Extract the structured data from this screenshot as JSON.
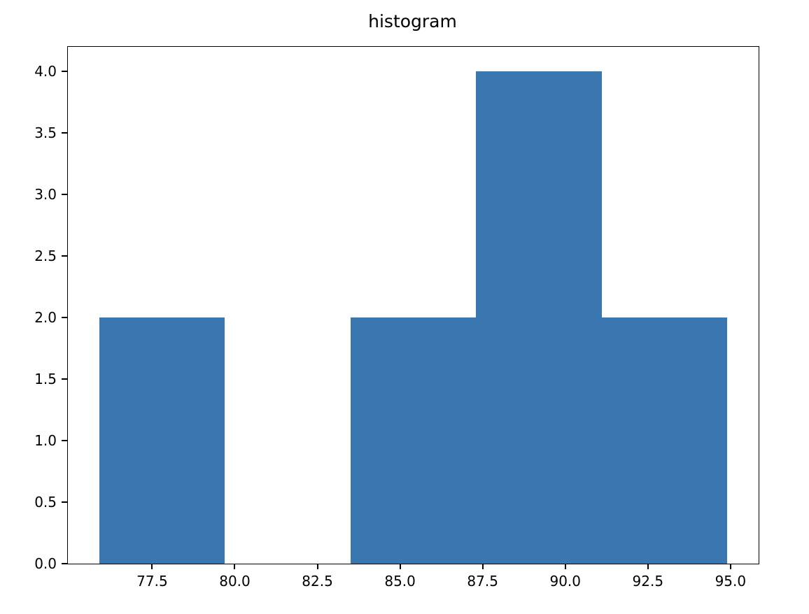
{
  "chart_data": {
    "type": "bar",
    "subtype": "histogram",
    "title": "histogram",
    "xlabel": "",
    "ylabel": "",
    "bin_edges": [
      75.9,
      79.7,
      83.5,
      87.3,
      91.1,
      94.9
    ],
    "counts": [
      2,
      0,
      2,
      4,
      2
    ],
    "xlim": [
      74.95,
      95.85
    ],
    "ylim": [
      0,
      4.2
    ],
    "xticks": [
      {
        "value": 77.5,
        "label": "77.5"
      },
      {
        "value": 80.0,
        "label": "80.0"
      },
      {
        "value": 82.5,
        "label": "82.5"
      },
      {
        "value": 85.0,
        "label": "85.0"
      },
      {
        "value": 87.5,
        "label": "87.5"
      },
      {
        "value": 90.0,
        "label": "90.0"
      },
      {
        "value": 92.5,
        "label": "92.5"
      },
      {
        "value": 95.0,
        "label": "95.0"
      }
    ],
    "yticks": [
      {
        "value": 0.0,
        "label": "0.0"
      },
      {
        "value": 0.5,
        "label": "0.5"
      },
      {
        "value": 1.0,
        "label": "1.0"
      },
      {
        "value": 1.5,
        "label": "1.5"
      },
      {
        "value": 2.0,
        "label": "2.0"
      },
      {
        "value": 2.5,
        "label": "2.5"
      },
      {
        "value": 3.0,
        "label": "3.0"
      },
      {
        "value": 3.5,
        "label": "3.5"
      },
      {
        "value": 4.0,
        "label": "4.0"
      }
    ],
    "bar_color": "#3a76af",
    "axis_color": "#000000",
    "grid": false,
    "legend_position": "none"
  }
}
